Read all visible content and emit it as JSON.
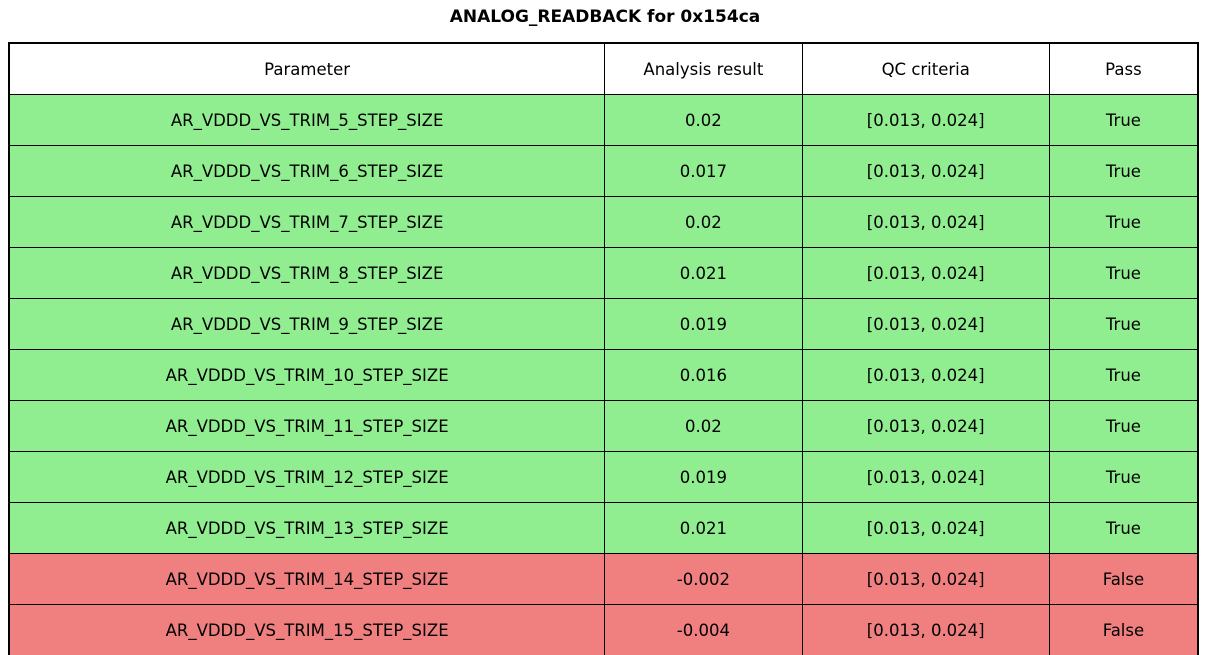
{
  "title": "ANALOG_READBACK for 0x154ca",
  "colors": {
    "pass_row": "#90ee90",
    "fail_row": "#f08080",
    "header_bg": "#ffffff",
    "border": "#000000",
    "text": "#000000"
  },
  "chart_data": {
    "type": "table",
    "title": "ANALOG_READBACK for 0x154ca",
    "columns": [
      "Parameter",
      "Analysis result",
      "QC criteria",
      "Pass"
    ],
    "column_widths_pct": [
      50.1,
      16.6,
      20.8,
      12.5
    ],
    "rows": [
      {
        "cells": [
          "AR_VDDD_VS_TRIM_5_STEP_SIZE",
          "0.02",
          "[0.013, 0.024]",
          "True"
        ],
        "status": "pass"
      },
      {
        "cells": [
          "AR_VDDD_VS_TRIM_6_STEP_SIZE",
          "0.017",
          "[0.013, 0.024]",
          "True"
        ],
        "status": "pass"
      },
      {
        "cells": [
          "AR_VDDD_VS_TRIM_7_STEP_SIZE",
          "0.02",
          "[0.013, 0.024]",
          "True"
        ],
        "status": "pass"
      },
      {
        "cells": [
          "AR_VDDD_VS_TRIM_8_STEP_SIZE",
          "0.021",
          "[0.013, 0.024]",
          "True"
        ],
        "status": "pass"
      },
      {
        "cells": [
          "AR_VDDD_VS_TRIM_9_STEP_SIZE",
          "0.019",
          "[0.013, 0.024]",
          "True"
        ],
        "status": "pass"
      },
      {
        "cells": [
          "AR_VDDD_VS_TRIM_10_STEP_SIZE",
          "0.016",
          "[0.013, 0.024]",
          "True"
        ],
        "status": "pass"
      },
      {
        "cells": [
          "AR_VDDD_VS_TRIM_11_STEP_SIZE",
          "0.02",
          "[0.013, 0.024]",
          "True"
        ],
        "status": "pass"
      },
      {
        "cells": [
          "AR_VDDD_VS_TRIM_12_STEP_SIZE",
          "0.019",
          "[0.013, 0.024]",
          "True"
        ],
        "status": "pass"
      },
      {
        "cells": [
          "AR_VDDD_VS_TRIM_13_STEP_SIZE",
          "0.021",
          "[0.013, 0.024]",
          "True"
        ],
        "status": "pass"
      },
      {
        "cells": [
          "AR_VDDD_VS_TRIM_14_STEP_SIZE",
          "-0.002",
          "[0.013, 0.024]",
          "False"
        ],
        "status": "fail"
      },
      {
        "cells": [
          "AR_VDDD_VS_TRIM_15_STEP_SIZE",
          "-0.004",
          "[0.013, 0.024]",
          "False"
        ],
        "status": "fail"
      }
    ],
    "status_colors": {
      "pass": "#90ee90",
      "fail": "#f08080"
    }
  }
}
